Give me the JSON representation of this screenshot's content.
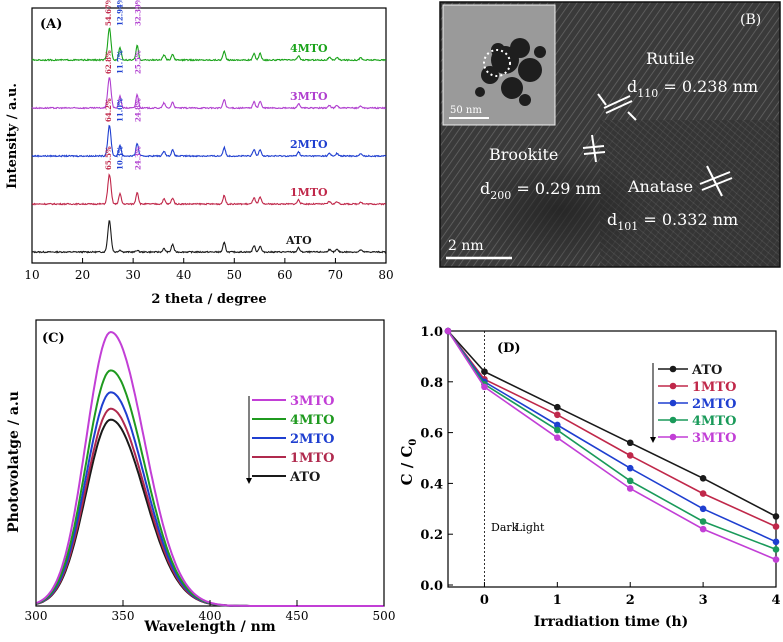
{
  "chart_data": [
    {
      "panel": "(A)",
      "type": "line",
      "title": "",
      "xlabel": "2 theta / degree",
      "ylabel": "Intensity / a.u.",
      "xlim": [
        10,
        80
      ],
      "xticks": [
        10,
        20,
        30,
        40,
        50,
        60,
        70,
        80
      ],
      "grid": false,
      "peaks_2theta": [
        25.3,
        27.4,
        30.8,
        36.1,
        37.8,
        48.0,
        53.9,
        55.1,
        62.7,
        68.8,
        70.3,
        75.0
      ],
      "series": [
        {
          "name": "ATO",
          "color": "#1a1a1a",
          "offset": 0,
          "peak_heights": [
            0.75,
            0.05,
            0.04,
            0.08,
            0.18,
            0.22,
            0.15,
            0.14,
            0.1,
            0.06,
            0.06,
            0.05
          ]
        },
        {
          "name": "1MTO",
          "color": "#c0284a",
          "offset": 1,
          "peak_heights": [
            0.7,
            0.24,
            0.28,
            0.12,
            0.14,
            0.2,
            0.15,
            0.16,
            0.1,
            0.06,
            0.06,
            0.05
          ]
        },
        {
          "name": "2MTO",
          "color": "#1f3fd0",
          "offset": 2,
          "peak_heights": [
            0.72,
            0.26,
            0.3,
            0.12,
            0.14,
            0.2,
            0.15,
            0.16,
            0.1,
            0.06,
            0.06,
            0.05
          ]
        },
        {
          "name": "3MTO",
          "color": "#b03fcf",
          "offset": 3,
          "peak_heights": [
            0.74,
            0.28,
            0.32,
            0.12,
            0.14,
            0.2,
            0.15,
            0.16,
            0.1,
            0.06,
            0.06,
            0.05
          ]
        },
        {
          "name": "4MTO",
          "color": "#1aa31a",
          "offset": 4,
          "peak_heights": [
            0.76,
            0.3,
            0.34,
            0.12,
            0.14,
            0.2,
            0.15,
            0.16,
            0.1,
            0.06,
            0.06,
            0.05
          ]
        }
      ],
      "phase_annotations": [
        {
          "series": "1MTO",
          "values": [
            "65.5%",
            "10.3%",
            "24.3%"
          ]
        },
        {
          "series": "2MTO",
          "values": [
            "64.2%",
            "11.0%",
            "24.8%"
          ]
        },
        {
          "series": "3MTO",
          "values": [
            "62.8%",
            "11.7%",
            "25.5%"
          ]
        },
        {
          "series": "4MTO",
          "values": [
            "54.67%",
            "12.94%",
            "32.39%"
          ]
        }
      ],
      "annotation_colors": [
        "#c0284a",
        "#1f3fd0",
        "#b03fcf"
      ]
    },
    {
      "panel": "(C)",
      "type": "line",
      "title": "",
      "xlabel": "Wavelength / nm",
      "ylabel": "Photovolatge / a.u",
      "xlim": [
        300,
        500
      ],
      "xticks": [
        300,
        350,
        400,
        450,
        500
      ],
      "grid": false,
      "peak_center_nm": 343,
      "legend_position": "center-right",
      "series": [
        {
          "name": "3MTO",
          "color": "#c23fd6",
          "peak": 1.0
        },
        {
          "name": "4MTO",
          "color": "#1f9a1f",
          "peak": 0.86
        },
        {
          "name": "2MTO",
          "color": "#1f3fd0",
          "peak": 0.78
        },
        {
          "name": "1MTO",
          "color": "#b02a4e",
          "peak": 0.72
        },
        {
          "name": "ATO",
          "color": "#1a1a1a",
          "peak": 0.68
        }
      ]
    },
    {
      "panel": "(D)",
      "type": "line",
      "title": "",
      "xlabel": "Irradiation time (h)",
      "ylabel": "C / C0",
      "xlim": [
        -0.5,
        4
      ],
      "ylim": [
        0,
        1.0
      ],
      "xticks": [
        0,
        1,
        2,
        3,
        4
      ],
      "yticks": [
        0.0,
        0.2,
        0.4,
        0.6,
        0.8,
        1.0
      ],
      "grid": false,
      "legend_position": "top-right",
      "x": [
        -0.5,
        0,
        1,
        2,
        3,
        4
      ],
      "series": [
        {
          "name": "ATO",
          "color": "#1a1a1a",
          "values": [
            1.0,
            0.84,
            0.7,
            0.56,
            0.42,
            0.27
          ]
        },
        {
          "name": "1MTO",
          "color": "#c0284a",
          "values": [
            1.0,
            0.81,
            0.67,
            0.51,
            0.36,
            0.23
          ]
        },
        {
          "name": "2MTO",
          "color": "#1f3fd0",
          "values": [
            1.0,
            0.8,
            0.63,
            0.46,
            0.3,
            0.17
          ]
        },
        {
          "name": "4MTO",
          "color": "#1a9a5a",
          "values": [
            1.0,
            0.79,
            0.61,
            0.41,
            0.25,
            0.14
          ]
        },
        {
          "name": "3MTO",
          "color": "#c23fd6",
          "values": [
            1.0,
            0.78,
            0.58,
            0.38,
            0.22,
            0.1
          ]
        }
      ],
      "dark_label": "Dark",
      "light_label": "Light"
    }
  ],
  "panel_b": {
    "label": "(B)",
    "rutile": "Rutile",
    "rutile_d": "d",
    "rutile_sub": "110",
    "rutile_val": " = 0.238 nm",
    "brookite": "Brookite",
    "brookite_d": "d",
    "brookite_sub": "200",
    "brookite_val": " = 0.29 nm",
    "anatase": "Anatase",
    "anatase_d": "d",
    "anatase_sub": "101",
    "anatase_val": " = 0.332 nm",
    "scale_main": "2 nm",
    "scale_inset": "50 nm"
  },
  "panel_d_ylabel_sub": "0"
}
